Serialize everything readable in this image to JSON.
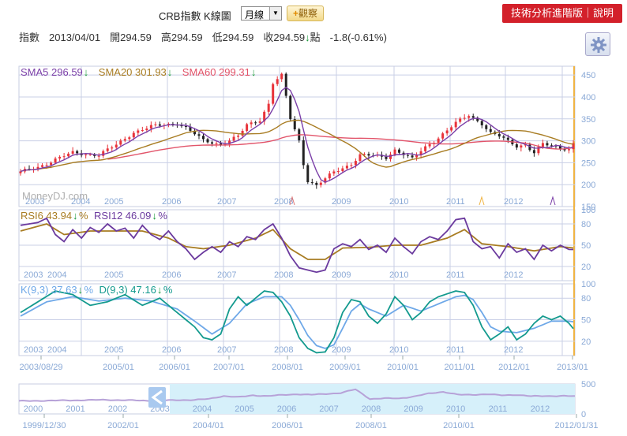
{
  "toolbar": {
    "title": "CRB指數 K線圖",
    "period": "月線",
    "observe_label": "觀察",
    "advanced_label": "技術分析進階版｜說明"
  },
  "info": {
    "label_index": "指數",
    "date": "2013/04/01",
    "open": "開294.59",
    "high": "高294.59",
    "low": "低294.59",
    "close": "收294.59",
    "close_arrow": "↓",
    "close_unit": "點",
    "change": "-1.8(-0.61%)"
  },
  "watermark": "MoneyDJ.com",
  "colors": {
    "up": "#e8333a",
    "down": "#222222",
    "sma5": "#7b3fa8",
    "sma20": "#a87c22",
    "sma60": "#e2546a",
    "rsi6": "#6b3a9e",
    "rsi12": "#a87c22",
    "k": "#139a8e",
    "d": "#6ea8e8",
    "grid": "#c9cfe6",
    "axis_label": "#8aa9d6",
    "orange": "#f0b443",
    "nav_fill": "#d6f0fa"
  },
  "chart_data": [
    {
      "type": "candlestick",
      "name": "price",
      "legend": [
        {
          "label": "SMA5",
          "value": "296.59",
          "arrow": "↓"
        },
        {
          "label": "SMA20",
          "value": "301.93",
          "arrow": "↓"
        },
        {
          "label": "SMA60",
          "value": "299.31",
          "arrow": "↓"
        }
      ],
      "ylim": [
        150,
        470
      ],
      "y_ticks": [
        150,
        200,
        250,
        300,
        350,
        400,
        450
      ],
      "year_labels": [
        "2003",
        "2004",
        "2005",
        "2006",
        "2007",
        "2008",
        "2009",
        "2010",
        "2011",
        "2012"
      ],
      "anchors": [
        [
          0,
          228
        ],
        [
          4,
          240
        ],
        [
          8,
          258
        ],
        [
          12,
          272
        ],
        [
          18,
          268
        ],
        [
          22,
          290
        ],
        [
          26,
          320
        ],
        [
          30,
          332
        ],
        [
          36,
          340
        ],
        [
          38,
          330
        ],
        [
          42,
          300
        ],
        [
          46,
          292
        ],
        [
          50,
          310
        ],
        [
          52,
          335
        ],
        [
          55,
          348
        ],
        [
          57,
          385
        ],
        [
          58,
          432
        ],
        [
          60,
          448
        ],
        [
          61,
          400
        ],
        [
          62,
          350
        ],
        [
          64,
          300
        ],
        [
          65,
          248
        ],
        [
          66,
          210
        ],
        [
          68,
          198
        ],
        [
          70,
          213
        ],
        [
          72,
          228
        ],
        [
          76,
          248
        ],
        [
          78,
          268
        ],
        [
          84,
          262
        ],
        [
          86,
          280
        ],
        [
          88,
          270
        ],
        [
          90,
          258
        ],
        [
          93,
          285
        ],
        [
          95,
          300
        ],
        [
          100,
          340
        ],
        [
          103,
          358
        ],
        [
          106,
          340
        ],
        [
          108,
          318
        ],
        [
          110,
          310
        ],
        [
          112,
          298
        ],
        [
          114,
          288
        ],
        [
          116,
          292
        ],
        [
          118,
          273
        ],
        [
          120,
          292
        ],
        [
          123,
          285
        ],
        [
          126,
          282
        ],
        [
          127,
          294.59
        ]
      ],
      "sma5_last": 296.59,
      "sma20_last": 301.93,
      "sma60_last": 299.31
    },
    {
      "type": "line",
      "name": "rsi",
      "legend": [
        {
          "label": "RSI6",
          "value": "43.94",
          "arrow": "↓",
          "unit": "%"
        },
        {
          "label": "RSI12",
          "value": "46.09",
          "arrow": "↓",
          "unit": "%"
        }
      ],
      "ylim": [
        0,
        100
      ],
      "y_ticks": [
        20,
        50,
        80,
        100
      ],
      "year_labels": [
        "2003",
        "2004",
        "2005",
        "2006",
        "2007",
        "2008",
        "2009",
        "2010",
        "2011",
        "2012"
      ],
      "rsi6_anchors": [
        [
          0,
          78
        ],
        [
          4,
          82
        ],
        [
          6,
          88
        ],
        [
          8,
          65
        ],
        [
          10,
          55
        ],
        [
          12,
          72
        ],
        [
          14,
          60
        ],
        [
          16,
          75
        ],
        [
          18,
          68
        ],
        [
          20,
          80
        ],
        [
          22,
          70
        ],
        [
          24,
          74
        ],
        [
          26,
          60
        ],
        [
          28,
          78
        ],
        [
          30,
          65
        ],
        [
          32,
          58
        ],
        [
          34,
          70
        ],
        [
          36,
          55
        ],
        [
          38,
          45
        ],
        [
          40,
          30
        ],
        [
          42,
          40
        ],
        [
          44,
          48
        ],
        [
          46,
          40
        ],
        [
          48,
          55
        ],
        [
          50,
          48
        ],
        [
          52,
          62
        ],
        [
          54,
          58
        ],
        [
          56,
          72
        ],
        [
          58,
          80
        ],
        [
          60,
          60
        ],
        [
          62,
          35
        ],
        [
          64,
          18
        ],
        [
          66,
          15
        ],
        [
          68,
          12
        ],
        [
          70,
          15
        ],
        [
          72,
          45
        ],
        [
          74,
          52
        ],
        [
          76,
          48
        ],
        [
          78,
          58
        ],
        [
          80,
          44
        ],
        [
          82,
          50
        ],
        [
          84,
          40
        ],
        [
          86,
          60
        ],
        [
          88,
          48
        ],
        [
          90,
          38
        ],
        [
          92,
          55
        ],
        [
          94,
          62
        ],
        [
          96,
          58
        ],
        [
          98,
          70
        ],
        [
          100,
          86
        ],
        [
          102,
          88
        ],
        [
          104,
          55
        ],
        [
          106,
          45
        ],
        [
          108,
          48
        ],
        [
          110,
          32
        ],
        [
          112,
          52
        ],
        [
          114,
          40
        ],
        [
          116,
          45
        ],
        [
          118,
          30
        ],
        [
          120,
          50
        ],
        [
          122,
          42
        ],
        [
          124,
          50
        ],
        [
          126,
          44
        ],
        [
          127,
          43.94
        ]
      ],
      "rsi12_anchors": [
        [
          0,
          70
        ],
        [
          6,
          80
        ],
        [
          10,
          65
        ],
        [
          16,
          70
        ],
        [
          22,
          70
        ],
        [
          28,
          70
        ],
        [
          34,
          60
        ],
        [
          38,
          48
        ],
        [
          42,
          45
        ],
        [
          48,
          50
        ],
        [
          54,
          60
        ],
        [
          58,
          72
        ],
        [
          62,
          45
        ],
        [
          66,
          30
        ],
        [
          70,
          30
        ],
        [
          74,
          46
        ],
        [
          80,
          47
        ],
        [
          86,
          50
        ],
        [
          92,
          50
        ],
        [
          98,
          60
        ],
        [
          102,
          72
        ],
        [
          106,
          52
        ],
        [
          112,
          48
        ],
        [
          118,
          42
        ],
        [
          124,
          48
        ],
        [
          127,
          46.09
        ]
      ]
    },
    {
      "type": "line",
      "name": "kd",
      "legend": [
        {
          "label": "K(9,3)",
          "value": "37.63",
          "arrow": "↓",
          "unit": "%"
        },
        {
          "label": "D(9,3)",
          "value": "47.16",
          "arrow": "↓",
          "unit": "%"
        }
      ],
      "ylim": [
        0,
        100
      ],
      "y_ticks": [
        20,
        50,
        80,
        100
      ],
      "year_labels": [
        "2003",
        "2004",
        "2005",
        "2006",
        "2007",
        "2008",
        "2009",
        "2010",
        "2011",
        "2012"
      ],
      "k_anchors": [
        [
          0,
          60
        ],
        [
          4,
          75
        ],
        [
          8,
          90
        ],
        [
          12,
          85
        ],
        [
          16,
          70
        ],
        [
          20,
          75
        ],
        [
          24,
          85
        ],
        [
          28,
          70
        ],
        [
          32,
          80
        ],
        [
          36,
          60
        ],
        [
          40,
          40
        ],
        [
          42,
          25
        ],
        [
          44,
          22
        ],
        [
          46,
          30
        ],
        [
          48,
          65
        ],
        [
          50,
          82
        ],
        [
          52,
          70
        ],
        [
          54,
          80
        ],
        [
          56,
          90
        ],
        [
          58,
          88
        ],
        [
          60,
          75
        ],
        [
          62,
          55
        ],
        [
          64,
          25
        ],
        [
          66,
          10
        ],
        [
          68,
          4
        ],
        [
          70,
          5
        ],
        [
          72,
          25
        ],
        [
          74,
          60
        ],
        [
          76,
          78
        ],
        [
          78,
          75
        ],
        [
          80,
          55
        ],
        [
          82,
          45
        ],
        [
          84,
          58
        ],
        [
          86,
          82
        ],
        [
          88,
          70
        ],
        [
          90,
          50
        ],
        [
          92,
          60
        ],
        [
          94,
          75
        ],
        [
          96,
          82
        ],
        [
          98,
          86
        ],
        [
          100,
          90
        ],
        [
          102,
          88
        ],
        [
          104,
          70
        ],
        [
          106,
          40
        ],
        [
          108,
          22
        ],
        [
          110,
          30
        ],
        [
          112,
          40
        ],
        [
          114,
          22
        ],
        [
          116,
          30
        ],
        [
          118,
          45
        ],
        [
          120,
          55
        ],
        [
          122,
          50
        ],
        [
          124,
          55
        ],
        [
          126,
          45
        ],
        [
          127,
          37.63
        ]
      ],
      "d_anchors": [
        [
          0,
          55
        ],
        [
          6,
          75
        ],
        [
          12,
          82
        ],
        [
          18,
          76
        ],
        [
          24,
          80
        ],
        [
          30,
          76
        ],
        [
          36,
          65
        ],
        [
          40,
          48
        ],
        [
          44,
          30
        ],
        [
          48,
          45
        ],
        [
          52,
          72
        ],
        [
          56,
          82
        ],
        [
          60,
          82
        ],
        [
          62,
          70
        ],
        [
          64,
          50
        ],
        [
          66,
          28
        ],
        [
          68,
          14
        ],
        [
          70,
          10
        ],
        [
          72,
          15
        ],
        [
          74,
          38
        ],
        [
          76,
          62
        ],
        [
          78,
          72
        ],
        [
          80,
          65
        ],
        [
          84,
          55
        ],
        [
          88,
          70
        ],
        [
          92,
          62
        ],
        [
          96,
          72
        ],
        [
          100,
          82
        ],
        [
          102,
          84
        ],
        [
          104,
          78
        ],
        [
          106,
          60
        ],
        [
          108,
          40
        ],
        [
          110,
          34
        ],
        [
          114,
          32
        ],
        [
          118,
          38
        ],
        [
          122,
          48
        ],
        [
          126,
          48
        ],
        [
          127,
          47.16
        ]
      ]
    },
    {
      "type": "area",
      "name": "navigator",
      "ylim": [
        0,
        500
      ],
      "y_ticks": [
        0,
        500
      ],
      "year_labels": [
        "2000",
        "2001",
        "2002",
        "2003",
        "2004",
        "2005",
        "2006",
        "2007",
        "2008",
        "2009",
        "2010",
        "2011",
        "2012"
      ],
      "nav_anchors": [
        [
          0,
          215
        ],
        [
          24,
          235
        ],
        [
          36,
          220
        ],
        [
          48,
          235
        ],
        [
          52,
          250
        ],
        [
          56,
          300
        ],
        [
          60,
          280
        ],
        [
          64,
          310
        ],
        [
          68,
          300
        ],
        [
          76,
          330
        ],
        [
          80,
          320
        ],
        [
          88,
          350
        ],
        [
          92,
          410
        ],
        [
          96,
          250
        ],
        [
          100,
          260
        ],
        [
          104,
          260
        ],
        [
          108,
          290
        ],
        [
          112,
          340
        ],
        [
          116,
          370
        ],
        [
          120,
          320
        ],
        [
          124,
          320
        ],
        [
          128,
          330
        ],
        [
          132,
          310
        ],
        [
          136,
          320
        ],
        [
          140,
          295
        ],
        [
          144,
          300
        ],
        [
          148,
          300
        ],
        [
          152,
          295
        ]
      ]
    }
  ],
  "x_axis": {
    "main": [
      "2003/08/29",
      "2005/01",
      "2006/01",
      "2007/01",
      "2008/01",
      "2009/01",
      "2010/01",
      "2011/01",
      "2012/01",
      "2013/01"
    ],
    "nav": [
      "1999/12/30",
      "2002/01",
      "2004/01",
      "2006/01",
      "2008/01",
      "2010/01",
      "2012/01/31"
    ]
  }
}
